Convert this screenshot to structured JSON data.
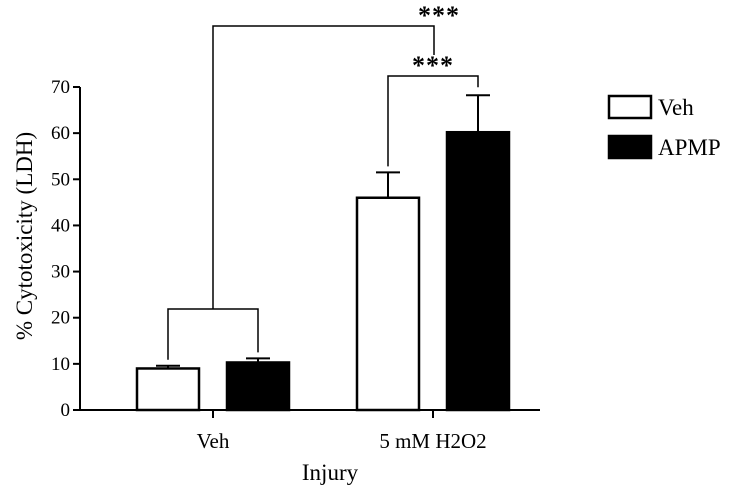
{
  "chart_data": {
    "type": "bar",
    "categories": [
      "Veh",
      "5 mM H2O2"
    ],
    "series": [
      {
        "name": "Veh",
        "values": [
          9,
          46
        ],
        "errors": [
          0.6,
          5.5
        ],
        "color": "#ffffff"
      },
      {
        "name": "APMP",
        "values": [
          10.3,
          60.2
        ],
        "errors": [
          0.9,
          8
        ],
        "color": "#000000"
      }
    ],
    "xlabel": "Injury",
    "ylabel": "% Cytotoxicity (LDH)",
    "ylim": [
      0,
      70
    ],
    "yticks": [
      0,
      10,
      20,
      30,
      40,
      50,
      60,
      70
    ],
    "legend_position": "top-right",
    "annotations": [
      {
        "text": "***",
        "between": "Veh group vs 5 mM H2O2 Veh"
      },
      {
        "text": "***",
        "between": "5 mM H2O2 Veh vs 5 mM H2O2 APMP"
      }
    ]
  }
}
